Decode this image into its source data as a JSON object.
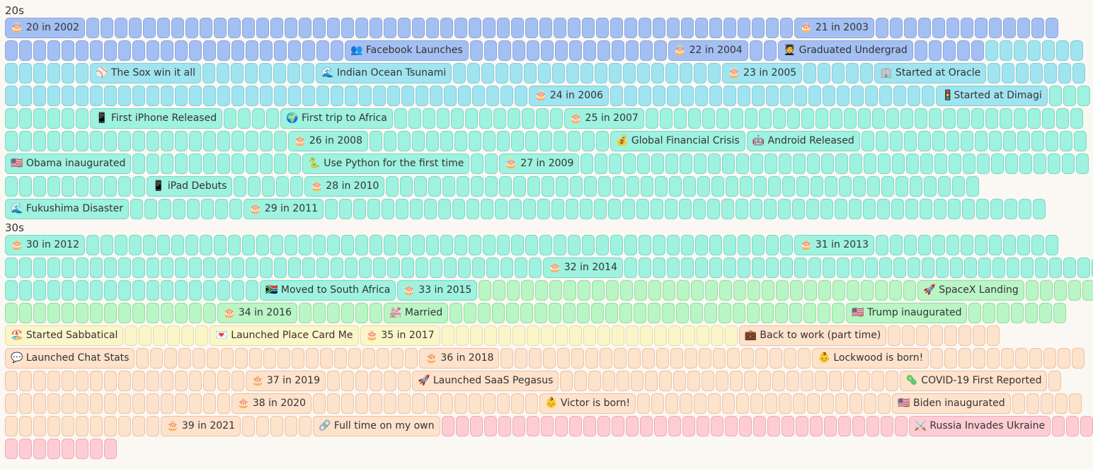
{
  "colors": {
    "blue": "#a4bff2",
    "sky": "#9fe4ef",
    "mint": "#9ef2df",
    "green": "#b9f5c5",
    "yellow": "#fbf6c9",
    "peach": "#fde2cc",
    "pink": "#fdcdd3",
    "background": "#fbf7f3"
  },
  "decades": [
    {
      "label": "20s",
      "rows": [
        [
          {
            "c": "blue",
            "e": "🎂 20 in 2002"
          },
          {
            "c": "blue",
            "n": 50
          },
          {
            "c": "blue",
            "e": "🎂 21 in 2003"
          },
          {
            "c": "blue",
            "n": 13
          }
        ],
        [
          {
            "c": "blue",
            "n": 24
          },
          {
            "c": "blue",
            "e": "👥 Facebook Launches"
          },
          {
            "c": "blue",
            "n": 14
          },
          {
            "c": "blue",
            "e": "🎂 22 in 2004"
          },
          {
            "c": "blue",
            "n": 2
          },
          {
            "c": "blue",
            "e": "🧑‍🎓 Graduated Undergrad"
          },
          {
            "c": "blue",
            "n": 5
          },
          {
            "c": "sky",
            "n": 7
          }
        ],
        [
          {
            "c": "sky",
            "n": 6
          },
          {
            "c": "sky",
            "e": "⚾ The Sox win it all"
          },
          {
            "c": "sky",
            "n": 8
          },
          {
            "c": "sky",
            "e": "🌊 Indian Ocean Tsunami"
          },
          {
            "c": "sky",
            "n": 19
          },
          {
            "c": "sky",
            "e": "🎂 23 in 2005"
          },
          {
            "c": "sky",
            "n": 5
          },
          {
            "c": "sky",
            "e": "🏢 Started at Oracle"
          },
          {
            "c": "sky",
            "n": 7
          }
        ],
        [
          {
            "c": "sky",
            "n": 37
          },
          {
            "c": "sky",
            "e": "🎂 24 in 2006"
          },
          {
            "c": "sky",
            "n": 23
          },
          {
            "c": "sky",
            "e": "🚦Started at Dimagi"
          },
          {
            "c": "mint",
            "n": 3
          }
        ],
        [
          {
            "c": "mint",
            "n": 6
          },
          {
            "c": "mint",
            "e": "📱 First iPhone Released"
          },
          {
            "c": "mint",
            "n": 4
          },
          {
            "c": "mint",
            "e": "🌍 First trip to Africa"
          },
          {
            "c": "mint",
            "n": 12
          },
          {
            "c": "mint",
            "e": "🎂 25 in 2007"
          },
          {
            "c": "mint",
            "n": 31
          }
        ],
        [
          {
            "c": "mint",
            "n": 20
          },
          {
            "c": "mint",
            "e": "🎂 26 in 2008"
          },
          {
            "c": "mint",
            "n": 17
          },
          {
            "c": "mint",
            "e": "💰 Global Financial Crisis"
          },
          {
            "c": "mint",
            "e": "🤖 Android Released"
          },
          {
            "c": "mint",
            "n": 16
          }
        ],
        [
          {
            "c": "mint",
            "e": "🇺🇸 Obama inaugurated"
          },
          {
            "c": "mint",
            "n": 12
          },
          {
            "c": "mint",
            "e": "🐍 Use Python for the first time"
          },
          {
            "c": "mint",
            "n": 2
          },
          {
            "c": "mint",
            "e": "🎂 27 in 2009"
          },
          {
            "c": "mint",
            "n": 36
          }
        ],
        [
          {
            "c": "mint",
            "n": 10
          },
          {
            "c": "mint",
            "e": "📱 iPad Debuts"
          },
          {
            "c": "mint",
            "n": 5
          },
          {
            "c": "mint",
            "e": "🎂 28 in 2010"
          },
          {
            "c": "mint",
            "n": 42
          }
        ],
        [
          {
            "c": "mint",
            "e": "🌊 Fukushima Disaster"
          },
          {
            "c": "mint",
            "n": 8
          },
          {
            "c": "mint",
            "e": "🎂 29 in 2011"
          },
          {
            "c": "mint",
            "n": 51
          }
        ]
      ]
    },
    {
      "label": "30s",
      "rows": [
        [
          {
            "c": "mint",
            "e": "🎂 30 in 2012"
          },
          {
            "c": "mint",
            "n": 50
          },
          {
            "c": "mint",
            "e": "🎂 31 in 2013"
          },
          {
            "c": "mint",
            "n": 13
          }
        ],
        [
          {
            "c": "mint",
            "n": 38
          },
          {
            "c": "mint",
            "e": "🎂 32 in 2014"
          },
          {
            "c": "mint",
            "n": 34
          }
        ],
        [
          {
            "c": "mint",
            "n": 18
          },
          {
            "c": "mint",
            "e": "🇿🇦 Moved to South Africa"
          },
          {
            "c": "mint",
            "e": "🎂 33 in 2015"
          },
          {
            "c": "green",
            "n": 31
          },
          {
            "c": "green",
            "e": "🚀 SpaceX Landing"
          },
          {
            "c": "green",
            "n": 5
          }
        ],
        [
          {
            "c": "green",
            "n": 15
          },
          {
            "c": "green",
            "e": "🎂 34 in 2016"
          },
          {
            "c": "green",
            "n": 6
          },
          {
            "c": "green",
            "e": "💒 Married"
          },
          {
            "c": "green",
            "n": 28
          },
          {
            "c": "green",
            "e": "🇺🇸 Trump inaugurated"
          },
          {
            "c": "green",
            "n": 7
          }
        ],
        [
          {
            "c": "yellow",
            "e": "🏖️ Started Sabbatical"
          },
          {
            "c": "yellow",
            "n": 6
          },
          {
            "c": "yellow",
            "e": "💌 Launched Place Card Me"
          },
          {
            "c": "yellow",
            "e": "🎂 35 in 2017"
          },
          {
            "c": "yellow",
            "n": 21
          },
          {
            "c": "peach",
            "e": "💼 Back to work (part time)"
          },
          {
            "c": "peach",
            "n": 8
          }
        ],
        [
          {
            "c": "peach",
            "e": "💬 Launched Chat Stats"
          },
          {
            "c": "peach",
            "n": 20
          },
          {
            "c": "peach",
            "e": "🎂 36 in 2018"
          },
          {
            "c": "peach",
            "n": 22
          },
          {
            "c": "peach",
            "e": "👶 Lockwood is born!"
          },
          {
            "c": "peach",
            "n": 11
          }
        ],
        [
          {
            "c": "peach",
            "n": 17
          },
          {
            "c": "peach",
            "e": "🎂 37 in 2019"
          },
          {
            "c": "peach",
            "n": 6
          },
          {
            "c": "peach",
            "e": "🚀 Launched SaaS Pegasus"
          },
          {
            "c": "peach",
            "n": 24
          },
          {
            "c": "peach",
            "e": "🦠 COVID-19 First Reported"
          },
          {
            "c": "peach",
            "n": 1
          }
        ],
        [
          {
            "c": "peach",
            "n": 16
          },
          {
            "c": "peach",
            "e": "🎂 38 in 2020"
          },
          {
            "c": "peach",
            "n": 16
          },
          {
            "c": "peach",
            "e": "👶 Victor is born!"
          },
          {
            "c": "peach",
            "n": 18
          },
          {
            "c": "peach",
            "e": "🇺🇸 Biden inaugurated"
          },
          {
            "c": "peach",
            "n": 5
          }
        ],
        [
          {
            "c": "peach",
            "n": 11
          },
          {
            "c": "peach",
            "e": "🎂 39 in 2021"
          },
          {
            "c": "peach",
            "n": 5
          },
          {
            "c": "peach",
            "e": "🔗 Full time on my own"
          },
          {
            "c": "pink",
            "n": 33
          },
          {
            "c": "pink",
            "e": "⚔️ Russia Invades Ukraine"
          },
          {
            "c": "pink",
            "n": 3
          }
        ],
        [
          {
            "c": "pink",
            "n": 8
          }
        ]
      ]
    }
  ]
}
